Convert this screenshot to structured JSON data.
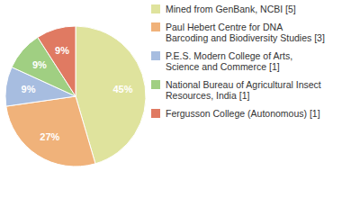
{
  "chart_data": {
    "type": "pie",
    "categories": [
      "Mined from GenBank, NCBI [5]",
      "Paul Hebert Centre for DNA Barcoding and Biodiversity Studies [3]",
      "P.E.S. Modern College of Arts, Science and Commerce [1]",
      "National Bureau of Agricultural Insect Resources, India [1]",
      "Fergusson College (Autonomous) [1]"
    ],
    "values": [
      45,
      27,
      9,
      9,
      9
    ],
    "value_labels": [
      "45%",
      "27%",
      "9%",
      "9%",
      "9%"
    ],
    "colors": [
      "#dfe39d",
      "#f0b27a",
      "#a7bde0",
      "#a0cf82",
      "#e07a62"
    ],
    "data_labels": true,
    "legend": "right"
  }
}
